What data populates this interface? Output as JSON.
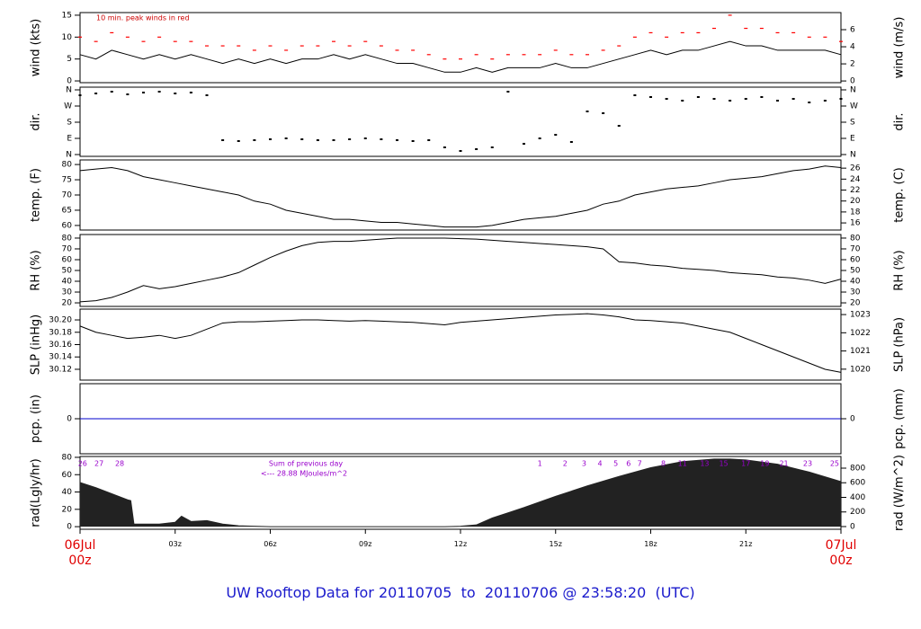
{
  "page_title": "UW Rooftop Data for 20110705  to  20110706 @ 23:58:20  (UTC)",
  "chart_data": [
    {
      "type": "line",
      "y_label": "wind (kts)",
      "y2_label": "wind (m/s)",
      "annotation": "10 min. peak winds in red",
      "xlim": [
        0,
        24
      ],
      "ylim": [
        -0.4,
        15.6
      ],
      "yticks": [
        0,
        5,
        10,
        15
      ],
      "y2lim": [
        -0.2,
        8
      ],
      "y2ticks": [
        0,
        2,
        4,
        6
      ],
      "x": [
        0,
        0.5,
        1,
        1.5,
        2,
        2.5,
        3,
        3.5,
        4,
        4.5,
        5,
        5.5,
        6,
        6.5,
        7,
        7.5,
        8,
        8.5,
        9,
        9.5,
        10,
        10.5,
        11,
        11.5,
        12,
        12.5,
        13,
        13.5,
        14,
        14.5,
        15,
        15.5,
        16,
        16.5,
        17,
        17.5,
        18,
        18.5,
        19,
        19.5,
        20,
        20.5,
        21,
        21.5,
        22,
        22.5,
        23,
        23.5,
        24
      ],
      "series": [
        {
          "color": "#000000",
          "style": "line",
          "values": [
            6,
            5,
            7,
            6,
            5,
            6,
            5,
            6,
            5,
            4,
            5,
            4,
            5,
            4,
            5,
            5,
            6,
            5,
            6,
            5,
            4,
            4,
            3,
            2,
            2,
            3,
            2,
            3,
            3,
            3,
            4,
            3,
            3,
            4,
            5,
            6,
            7,
            6,
            7,
            7,
            8,
            9,
            8,
            8,
            7,
            7,
            7,
            7,
            6
          ]
        },
        {
          "color": "#ff0000",
          "style": "points",
          "values": [
            10,
            9,
            11,
            10,
            9,
            10,
            9,
            9,
            8,
            8,
            8,
            7,
            8,
            7,
            8,
            8,
            9,
            8,
            9,
            8,
            7,
            7,
            6,
            5,
            5,
            6,
            5,
            6,
            6,
            6,
            7,
            6,
            6,
            7,
            8,
            10,
            11,
            10,
            11,
            11,
            12,
            15,
            12,
            12,
            11,
            11,
            10,
            10,
            9
          ]
        }
      ]
    },
    {
      "type": "scatter",
      "y_label": "dir.",
      "y2_label": "dir.",
      "xlim": [
        0,
        24
      ],
      "ylim": [
        -10,
        375
      ],
      "yticks": [
        {
          "value": 360,
          "label": "N"
        },
        {
          "value": 270,
          "label": "W"
        },
        {
          "value": 180,
          "label": "S"
        },
        {
          "value": 90,
          "label": "E"
        },
        {
          "value": 0,
          "label": "N"
        }
      ],
      "y2lim": [
        -10,
        375
      ],
      "y2ticks": [
        {
          "value": 360,
          "label": "N"
        },
        {
          "value": 270,
          "label": "W"
        },
        {
          "value": 180,
          "label": "S"
        },
        {
          "value": 90,
          "label": "E"
        },
        {
          "value": 0,
          "label": "N"
        }
      ],
      "x": [
        0,
        0.5,
        1,
        1.5,
        2,
        2.5,
        3,
        3.5,
        4,
        4.5,
        5,
        5.5,
        6,
        6.5,
        7,
        7.5,
        8,
        8.5,
        9,
        9.5,
        10,
        10.5,
        11,
        11.5,
        12,
        12.5,
        13,
        13.5,
        14,
        14.5,
        15,
        15.5,
        16,
        16.5,
        17,
        17.5,
        18,
        18.5,
        19,
        19.5,
        20,
        20.5,
        21,
        21.5,
        22,
        22.5,
        23,
        23.5,
        24
      ],
      "series": [
        {
          "color": "#000000",
          "style": "scatter",
          "values": [
            330,
            340,
            350,
            335,
            345,
            350,
            340,
            345,
            330,
            80,
            75,
            80,
            85,
            90,
            85,
            80,
            80,
            85,
            90,
            85,
            80,
            75,
            80,
            40,
            20,
            30,
            40,
            350,
            60,
            90,
            110,
            70,
            240,
            230,
            160,
            330,
            320,
            310,
            300,
            320,
            310,
            300,
            310,
            320,
            300,
            310,
            290,
            300,
            310
          ]
        }
      ]
    },
    {
      "type": "line",
      "y_label": "temp. (F)",
      "y2_label": "temp. (C)",
      "xlim": [
        0,
        24
      ],
      "ylim": [
        58.5,
        81.5
      ],
      "yticks": [
        60,
        65,
        70,
        75,
        80
      ],
      "y2lim": [
        14.7,
        27.5
      ],
      "y2ticks": [
        16,
        18,
        20,
        22,
        24,
        26
      ],
      "x": [
        0,
        0.5,
        1,
        1.5,
        2,
        2.5,
        3,
        3.5,
        4,
        4.5,
        5,
        5.5,
        6,
        6.5,
        7,
        7.5,
        8,
        8.5,
        9,
        9.5,
        10,
        10.5,
        11,
        11.5,
        12,
        12.5,
        13,
        13.5,
        14,
        14.5,
        15,
        15.5,
        16,
        16.5,
        17,
        17.5,
        18,
        18.5,
        19,
        19.5,
        20,
        20.5,
        21,
        21.5,
        22,
        22.5,
        23,
        23.5,
        24
      ],
      "series": [
        {
          "color": "#000000",
          "style": "line",
          "values": [
            78,
            78.5,
            79,
            78,
            76,
            75,
            74,
            73,
            72,
            71,
            70,
            68,
            67,
            65,
            64,
            63,
            62,
            62,
            61.5,
            61,
            61,
            60.5,
            60,
            59.5,
            59.5,
            59.5,
            60,
            61,
            62,
            62.5,
            63,
            64,
            65,
            67,
            68,
            70,
            71,
            72,
            72.5,
            73,
            74,
            75,
            75.5,
            76,
            77,
            78,
            78.5,
            79.5,
            79
          ]
        }
      ]
    },
    {
      "type": "line",
      "y_label": "RH (%)",
      "y2_label": "RH (%)",
      "xlim": [
        0,
        24
      ],
      "ylim": [
        16.7,
        83.3
      ],
      "yticks": [
        20,
        30,
        40,
        50,
        60,
        70,
        80
      ],
      "y2lim": [
        16.7,
        83.3
      ],
      "y2ticks": [
        20,
        30,
        40,
        50,
        60,
        70,
        80
      ],
      "x": [
        0,
        0.5,
        1,
        1.5,
        2,
        2.5,
        3,
        3.5,
        4,
        4.5,
        5,
        5.5,
        6,
        6.5,
        7,
        7.5,
        8,
        8.5,
        9,
        9.5,
        10,
        10.5,
        11,
        11.5,
        12,
        12.5,
        13,
        13.5,
        14,
        14.5,
        15,
        15.5,
        16,
        16.5,
        17,
        17.5,
        18,
        18.5,
        19,
        19.5,
        20,
        20.5,
        21,
        21.5,
        22,
        22.5,
        23,
        23.5,
        24
      ],
      "series": [
        {
          "color": "#000000",
          "style": "line",
          "values": [
            21,
            22,
            25,
            30,
            36,
            33,
            35,
            38,
            41,
            44,
            48,
            55,
            62,
            68,
            73,
            76,
            77,
            77,
            78,
            79,
            80,
            80,
            80,
            80,
            79.5,
            79,
            78,
            77,
            76,
            75,
            74,
            73,
            72,
            70,
            58,
            57,
            55,
            54,
            52,
            51,
            50,
            48,
            47,
            46,
            44,
            43,
            41,
            38,
            42
          ]
        }
      ]
    },
    {
      "type": "line",
      "y_label": "SLP (inHg)",
      "y2_label": "SLP (hPa)",
      "xlim": [
        0,
        24
      ],
      "ylim": [
        30.1025,
        30.2175
      ],
      "yticks": [
        30.12,
        30.14,
        30.16,
        30.18,
        {
          "value": 30.2,
          "label": "30.20"
        }
      ],
      "y2lim": [
        1019.4,
        1023.3
      ],
      "y2ticks": [
        1020,
        1021,
        1022,
        1023
      ],
      "x": [
        0,
        0.5,
        1,
        1.5,
        2,
        2.5,
        3,
        3.5,
        4,
        4.5,
        5,
        5.5,
        6,
        6.5,
        7,
        7.5,
        8,
        8.5,
        9,
        9.5,
        10,
        10.5,
        11,
        11.5,
        12,
        12.5,
        13,
        13.5,
        14,
        14.5,
        15,
        15.5,
        16,
        16.5,
        17,
        17.5,
        18,
        18.5,
        19,
        19.5,
        20,
        20.5,
        21,
        21.5,
        22,
        22.5,
        23,
        23.5,
        24
      ],
      "series": [
        {
          "color": "#000000",
          "style": "line",
          "values": [
            30.19,
            30.18,
            30.175,
            30.17,
            30.172,
            30.175,
            30.17,
            30.175,
            30.185,
            30.195,
            30.197,
            30.197,
            30.198,
            30.199,
            30.2,
            30.2,
            30.199,
            30.198,
            30.199,
            30.198,
            30.197,
            30.196,
            30.194,
            30.192,
            30.196,
            30.198,
            30.2,
            30.202,
            30.204,
            30.206,
            30.208,
            30.209,
            30.21,
            30.208,
            30.205,
            30.2,
            30.199,
            30.197,
            30.195,
            30.19,
            30.185,
            30.18,
            30.17,
            30.16,
            30.15,
            30.14,
            30.13,
            30.12,
            30.115
          ]
        }
      ]
    },
    {
      "type": "line",
      "y_label": "pcp. (in)",
      "y2_label": "pcp. (mm)",
      "xlim": [
        0,
        24
      ],
      "ylim": [
        -1,
        1
      ],
      "yticks": [
        0
      ],
      "y2lim": [
        -1,
        1
      ],
      "y2ticks": [
        0
      ],
      "x": [
        0,
        24
      ],
      "series": [
        {
          "color": "#0000cc",
          "style": "line",
          "values": [
            0,
            0
          ]
        }
      ]
    },
    {
      "type": "area",
      "y_label": "rad(Lgly/hr)",
      "y2_label": "rad (W/m^2)",
      "note": "Sum of previous day",
      "note2": "<--- 28.88 MJoules/m^2",
      "xlim": [
        0,
        24
      ],
      "ylim": [
        -3,
        81
      ],
      "yticks": [
        0,
        20,
        40,
        60,
        80
      ],
      "y2lim": [
        -37,
        960
      ],
      "y2ticks": [
        0,
        200,
        400,
        600,
        800
      ],
      "xticks": [
        {
          "value": 0,
          "label": "06Jul\n00z"
        },
        {
          "value": 3,
          "label": "03z"
        },
        {
          "value": 6,
          "label": "06z"
        },
        {
          "value": 9,
          "label": "09z"
        },
        {
          "value": 12,
          "label": "12z"
        },
        {
          "value": 15,
          "label": "15z"
        },
        {
          "value": 18,
          "label": "18z"
        },
        {
          "value": 21,
          "label": "21z"
        },
        {
          "value": 24,
          "label": "07Jul\n00z"
        }
      ],
      "hour_labels": [
        {
          "x": 0.08,
          "label": "26"
        },
        {
          "x": 0.6,
          "label": "27"
        },
        {
          "x": 1.25,
          "label": "28"
        },
        {
          "x": 14.5,
          "label": "1"
        },
        {
          "x": 15.3,
          "label": "2"
        },
        {
          "x": 15.9,
          "label": "3"
        },
        {
          "x": 16.4,
          "label": "4"
        },
        {
          "x": 16.9,
          "label": "5"
        },
        {
          "x": 17.3,
          "label": "6"
        },
        {
          "x": 17.65,
          "label": "7"
        },
        {
          "x": 18.4,
          "label": "8"
        },
        {
          "x": 19.0,
          "label": "11"
        },
        {
          "x": 19.7,
          "label": "13"
        },
        {
          "x": 20.3,
          "label": "15"
        },
        {
          "x": 21.0,
          "label": "17"
        },
        {
          "x": 21.6,
          "label": "19"
        },
        {
          "x": 22.2,
          "label": "21"
        },
        {
          "x": 22.95,
          "label": "23"
        },
        {
          "x": 23.8,
          "label": "25"
        }
      ],
      "x": [
        0,
        0.5,
        1,
        1.5,
        1.6,
        1.7,
        2,
        2.5,
        3,
        3.2,
        3.5,
        4,
        4.5,
        5,
        6,
        7,
        8,
        9,
        10,
        11,
        11.5,
        12,
        12.5,
        13,
        13.5,
        14,
        15,
        16,
        17,
        18,
        19,
        20,
        20.5,
        21,
        22,
        23,
        24
      ],
      "series": [
        {
          "color": "#222222",
          "style": "area",
          "values": [
            51,
            45,
            38,
            31,
            30,
            3,
            3,
            3,
            5,
            12,
            6,
            7,
            3,
            1,
            0,
            0,
            0,
            0,
            0,
            0,
            0,
            0.5,
            2,
            10,
            16,
            22,
            35,
            47,
            58,
            68,
            75,
            78,
            78,
            77,
            72,
            63,
            52
          ]
        }
      ]
    }
  ]
}
